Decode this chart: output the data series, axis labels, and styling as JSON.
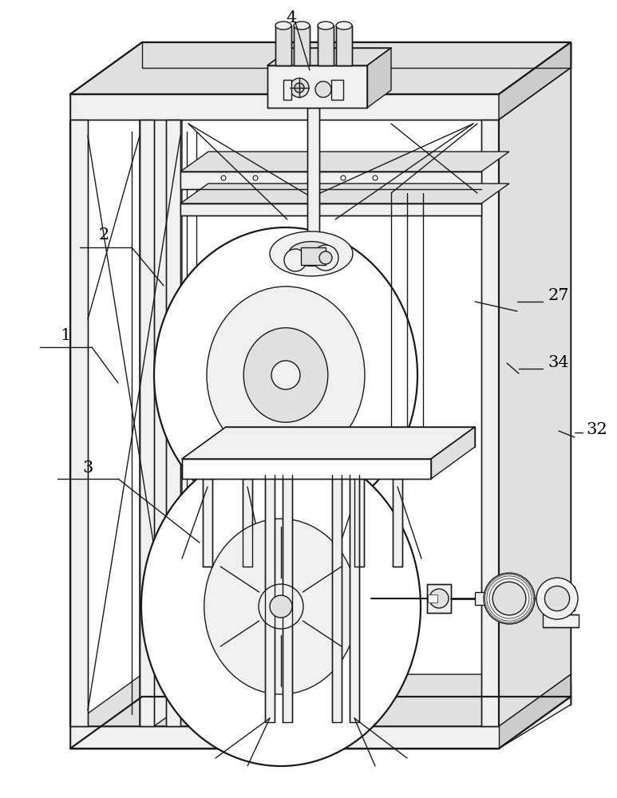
{
  "bg": "#ffffff",
  "lc": "#1a1a1a",
  "lw": 1.0,
  "tlw": 1.6,
  "fig_w": 7.73,
  "fig_h": 10.0,
  "label_fs": 15,
  "label_serif": "DejaVu Serif"
}
